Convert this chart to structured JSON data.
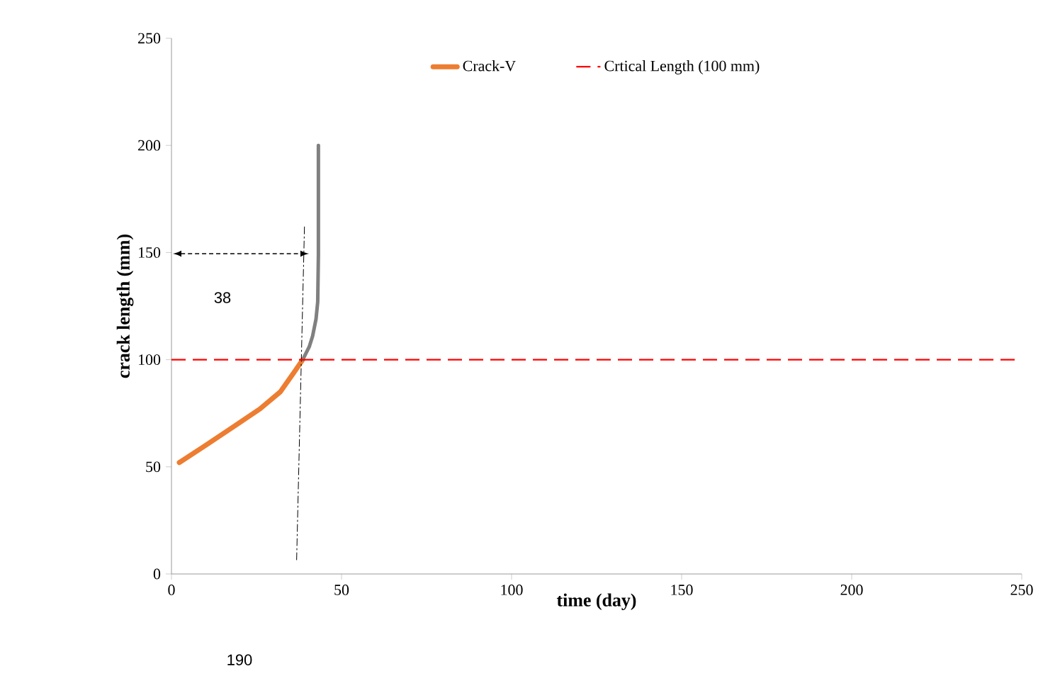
{
  "chart_data": {
    "type": "line",
    "xlabel": "time (day)",
    "ylabel": "crack length (mm)",
    "xlim": [
      0,
      250
    ],
    "ylim": [
      0,
      250
    ],
    "xticks": [
      0,
      50,
      100,
      150,
      200,
      250
    ],
    "yticks": [
      0,
      50,
      100,
      150,
      200,
      250
    ],
    "series": [
      {
        "name": "Crack-V",
        "color": "#ed7d31",
        "x": [
          2.3,
          10,
          18.5,
          26,
          32,
          36,
          38.6
        ],
        "values": [
          52,
          60,
          69,
          77,
          85,
          94,
          100
        ]
      },
      {
        "color": "#808080",
        "x": [
          38.6,
          40.5,
          41.5,
          42.5,
          43,
          43.2,
          43.2
        ],
        "values": [
          100,
          106,
          111,
          119,
          127,
          149,
          200
        ]
      },
      {
        "color": "#000000",
        "line_style": "dashed",
        "x": [
          36.8,
          39.1
        ],
        "values": [
          6.6,
          162
        ]
      }
    ],
    "ref_lines": [
      {
        "axis": "y",
        "value": 100,
        "label": "Crtical Length (100 mm)",
        "color": "#ff0000",
        "line_style": "dashed"
      }
    ],
    "annotations": [
      "38",
      "190"
    ],
    "legend": "top",
    "grid": false
  }
}
